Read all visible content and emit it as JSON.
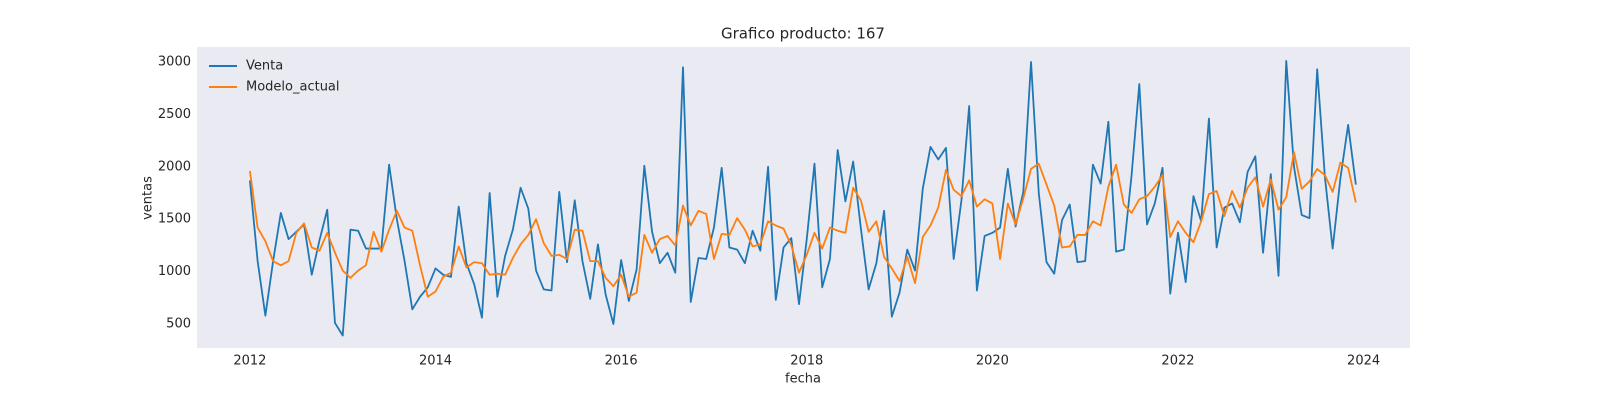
{
  "chart_data": {
    "type": "line",
    "title": "Grafico producto: 167",
    "xlabel": "fecha",
    "ylabel": "ventas",
    "x": [
      "2012-01",
      "2012-02",
      "2012-03",
      "2012-04",
      "2012-05",
      "2012-06",
      "2012-07",
      "2012-08",
      "2012-09",
      "2012-10",
      "2012-11",
      "2012-12",
      "2013-01",
      "2013-02",
      "2013-03",
      "2013-04",
      "2013-05",
      "2013-06",
      "2013-07",
      "2013-08",
      "2013-09",
      "2013-10",
      "2013-11",
      "2013-12",
      "2014-01",
      "2014-02",
      "2014-03",
      "2014-04",
      "2014-05",
      "2014-06",
      "2014-07",
      "2014-08",
      "2014-09",
      "2014-10",
      "2014-11",
      "2014-12",
      "2015-01",
      "2015-02",
      "2015-03",
      "2015-04",
      "2015-05",
      "2015-06",
      "2015-07",
      "2015-08",
      "2015-09",
      "2015-10",
      "2015-11",
      "2015-12",
      "2016-01",
      "2016-02",
      "2016-03",
      "2016-04",
      "2016-05",
      "2016-06",
      "2016-07",
      "2016-08",
      "2016-09",
      "2016-10",
      "2016-11",
      "2016-12",
      "2017-01",
      "2017-02",
      "2017-03",
      "2017-04",
      "2017-05",
      "2017-06",
      "2017-07",
      "2017-08",
      "2017-09",
      "2017-10",
      "2017-11",
      "2017-12",
      "2018-01",
      "2018-02",
      "2018-03",
      "2018-04",
      "2018-05",
      "2018-06",
      "2018-07",
      "2018-08",
      "2018-09",
      "2018-10",
      "2018-11",
      "2018-12",
      "2019-01",
      "2019-02",
      "2019-03",
      "2019-04",
      "2019-05",
      "2019-06",
      "2019-07",
      "2019-08",
      "2019-09",
      "2019-10",
      "2019-11",
      "2019-12",
      "2020-01",
      "2020-02",
      "2020-03",
      "2020-04",
      "2020-05",
      "2020-06",
      "2020-07",
      "2020-08",
      "2020-09",
      "2020-10",
      "2020-11",
      "2020-12",
      "2021-01",
      "2021-02",
      "2021-03",
      "2021-04",
      "2021-05",
      "2021-06",
      "2021-07",
      "2021-08",
      "2021-09",
      "2021-10",
      "2021-11",
      "2021-12",
      "2022-01",
      "2022-02",
      "2022-03",
      "2022-04",
      "2022-05",
      "2022-06",
      "2022-07",
      "2022-08",
      "2022-09",
      "2022-10",
      "2022-11",
      "2022-12",
      "2023-01",
      "2023-02",
      "2023-03",
      "2023-04",
      "2023-05",
      "2023-06",
      "2023-07",
      "2023-08",
      "2023-09",
      "2023-10",
      "2023-11",
      "2023-12"
    ],
    "series": [
      {
        "name": "Venta",
        "color": "#1f77b4",
        "values": [
          1870,
          1100,
          580,
          1100,
          1560,
          1310,
          1380,
          1450,
          970,
          1300,
          1590,
          510,
          390,
          1400,
          1390,
          1220,
          1220,
          1220,
          2020,
          1500,
          1100,
          640,
          760,
          850,
          1030,
          970,
          950,
          1620,
          1080,
          880,
          560,
          1750,
          760,
          1150,
          1400,
          1800,
          1600,
          1010,
          830,
          820,
          1760,
          1090,
          1680,
          1100,
          740,
          1260,
          780,
          500,
          1110,
          720,
          1020,
          2010,
          1380,
          1080,
          1180,
          990,
          2950,
          710,
          1130,
          1120,
          1420,
          1990,
          1230,
          1210,
          1080,
          1390,
          1200,
          2000,
          730,
          1230,
          1320,
          690,
          1310,
          2030,
          850,
          1120,
          2160,
          1670,
          2050,
          1410,
          830,
          1080,
          1580,
          570,
          800,
          1210,
          1010,
          1790,
          2190,
          2070,
          2180,
          1120,
          1680,
          2580,
          820,
          1340,
          1370,
          1420,
          1980,
          1430,
          1760,
          3000,
          1750,
          1090,
          980,
          1490,
          1640,
          1090,
          1100,
          2020,
          1840,
          2430,
          1190,
          1210,
          1920,
          2790,
          1450,
          1650,
          1990,
          790,
          1370,
          900,
          1720,
          1480,
          2460,
          1230,
          1610,
          1650,
          1470,
          1950,
          2100,
          1180,
          1930,
          960,
          3010,
          2000,
          1540,
          1510,
          2930,
          1900,
          1220,
          1890,
          2400,
          1830
        ]
      },
      {
        "name": "Modelo_actual",
        "color": "#ff7f0e",
        "values": [
          1960,
          1420,
          1290,
          1100,
          1060,
          1100,
          1370,
          1460,
          1230,
          1200,
          1370,
          1180,
          1010,
          940,
          1010,
          1060,
          1380,
          1190,
          1400,
          1580,
          1420,
          1390,
          1060,
          760,
          810,
          950,
          990,
          1240,
          1040,
          1090,
          1080,
          970,
          980,
          970,
          1130,
          1260,
          1350,
          1500,
          1270,
          1150,
          1160,
          1120,
          1400,
          1390,
          1100,
          1100,
          940,
          860,
          970,
          760,
          800,
          1350,
          1180,
          1310,
          1340,
          1250,
          1630,
          1440,
          1580,
          1550,
          1120,
          1360,
          1350,
          1510,
          1400,
          1240,
          1260,
          1480,
          1440,
          1410,
          1250,
          990,
          1160,
          1370,
          1220,
          1420,
          1390,
          1370,
          1800,
          1680,
          1380,
          1480,
          1140,
          1030,
          910,
          1140,
          890,
          1330,
          1440,
          1610,
          1970,
          1780,
          1720,
          1870,
          1620,
          1690,
          1650,
          1120,
          1650,
          1450,
          1700,
          1980,
          2030,
          1830,
          1630,
          1230,
          1240,
          1350,
          1350,
          1480,
          1440,
          1810,
          2020,
          1640,
          1560,
          1690,
          1720,
          1810,
          1920,
          1330,
          1480,
          1370,
          1280,
          1480,
          1740,
          1770,
          1530,
          1770,
          1610,
          1800,
          1900,
          1620,
          1880,
          1590,
          1710,
          2140,
          1790,
          1860,
          1980,
          1920,
          1760,
          2040,
          1990,
          1660
        ]
      }
    ],
    "xlim": [
      2011.43,
      2024.5
    ],
    "xticks": [
      2012,
      2014,
      2016,
      2018,
      2020,
      2022,
      2024
    ],
    "ylim": [
      271,
      3143
    ],
    "yticks": [
      500,
      1000,
      1500,
      2000,
      2500,
      3000
    ],
    "grid": false,
    "legend": "upper left"
  }
}
